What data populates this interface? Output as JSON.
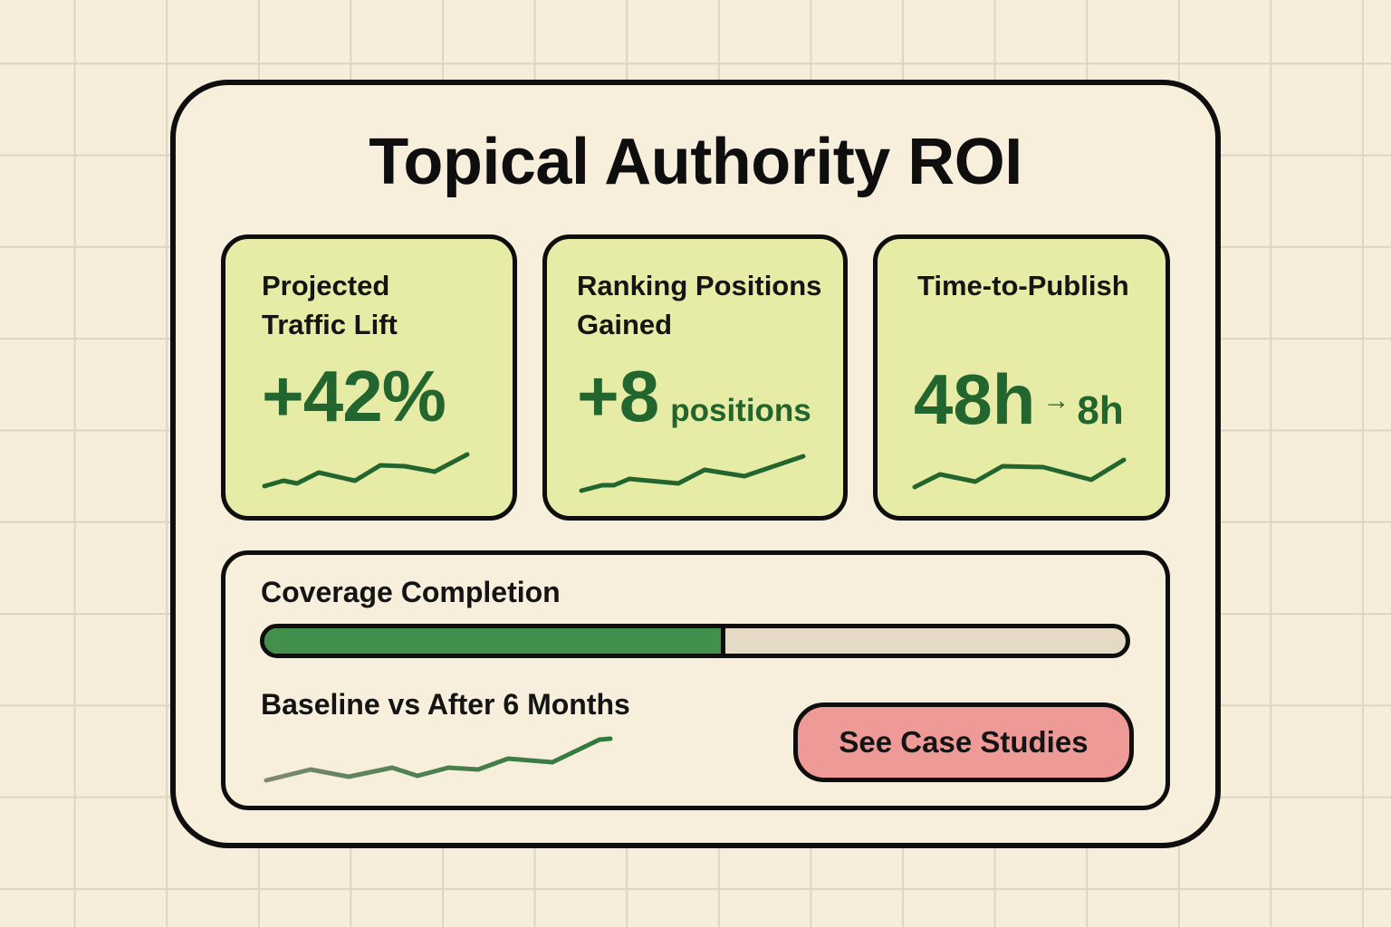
{
  "title": "Topical Authority ROI",
  "colors": {
    "background": "#F6EDDB",
    "grid_line": "#DDD5C4",
    "card_fill": "#E6EBA5",
    "metric_green": "#23652F",
    "progress_fill": "#43904D",
    "progress_track": "#E4DAC6",
    "button_fill": "#EE9A96",
    "border": "#0E0E0E"
  },
  "metrics": [
    {
      "label_line1": "Projected",
      "label_line2": "Traffic Lift",
      "value": "+42%",
      "sparkline": [
        [
          292,
          537
        ],
        [
          313,
          531
        ],
        [
          328,
          534
        ],
        [
          352,
          522
        ],
        [
          392,
          531
        ],
        [
          420,
          514
        ],
        [
          447,
          515
        ],
        [
          480,
          521
        ],
        [
          516,
          502
        ]
      ]
    },
    {
      "label_line1": "Ranking Positions",
      "label_line2": "Gained",
      "value": "+8",
      "unit": "positions",
      "sparkline": [
        [
          642,
          542
        ],
        [
          665,
          536
        ],
        [
          678,
          536
        ],
        [
          695,
          529
        ],
        [
          749,
          534
        ],
        [
          778,
          519
        ],
        [
          822,
          526
        ],
        [
          887,
          504
        ]
      ]
    },
    {
      "label_line1": "Time-to-Publish",
      "value_from": "48h",
      "arrow": "→",
      "value_to": "8h",
      "sparkline": [
        [
          1010,
          538
        ],
        [
          1038,
          524
        ],
        [
          1077,
          532
        ],
        [
          1107,
          515
        ],
        [
          1152,
          516
        ],
        [
          1205,
          530
        ],
        [
          1241,
          508
        ]
      ]
    }
  ],
  "coverage": {
    "label": "Coverage Completion",
    "percent": 53
  },
  "comparison": {
    "label": "Baseline vs After 6 Months",
    "sparkline_baseline": [
      [
        294,
        862
      ],
      [
        343,
        850
      ],
      [
        385,
        858
      ],
      [
        433,
        848
      ],
      [
        461,
        857
      ],
      [
        495,
        848
      ],
      [
        528,
        850
      ],
      [
        561,
        838
      ],
      [
        610,
        842
      ]
    ],
    "sparkline_after": [
      [
        610,
        842
      ],
      [
        662,
        817
      ],
      [
        674,
        816
      ]
    ]
  },
  "cta": {
    "label": "See Case Studies"
  }
}
